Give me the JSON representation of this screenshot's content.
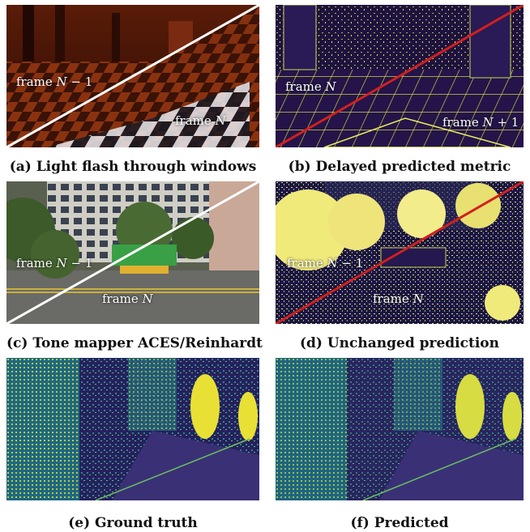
{
  "panels": {
    "a": {
      "caption": "(a) Light flash through windows",
      "label_top": {
        "prefix": "frame ",
        "var": "N",
        "suffix": " − 1"
      },
      "label_bottom": {
        "prefix": "frame ",
        "var": "N",
        "suffix": ""
      }
    },
    "b": {
      "caption": "(b) Delayed predicted metric",
      "label_top": {
        "prefix": "frame ",
        "var": "N",
        "suffix": ""
      },
      "label_bottom": {
        "prefix": "frame ",
        "var": "N",
        "suffix": " + 1"
      }
    },
    "c": {
      "caption": "(c) Tone mapper ACES/Reinhardt",
      "label_top": {
        "prefix": "frame ",
        "var": "N",
        "suffix": " − 1"
      },
      "label_bottom": {
        "prefix": "frame ",
        "var": "N",
        "suffix": ""
      }
    },
    "d": {
      "caption": "(d) Unchanged prediction",
      "label_top": {
        "prefix": "frame ",
        "var": "N",
        "suffix": " − 1"
      },
      "label_bottom": {
        "prefix": "frame ",
        "var": "N",
        "suffix": ""
      }
    },
    "e": {
      "caption": "(e) Ground truth"
    },
    "f": {
      "caption": "(f) Predicted"
    }
  },
  "colors": {
    "divider_light": "#ffffff",
    "divider_metric": "#d0201c",
    "heat_low": "#2c1a5c",
    "heat_high": "#f2ec3a"
  }
}
